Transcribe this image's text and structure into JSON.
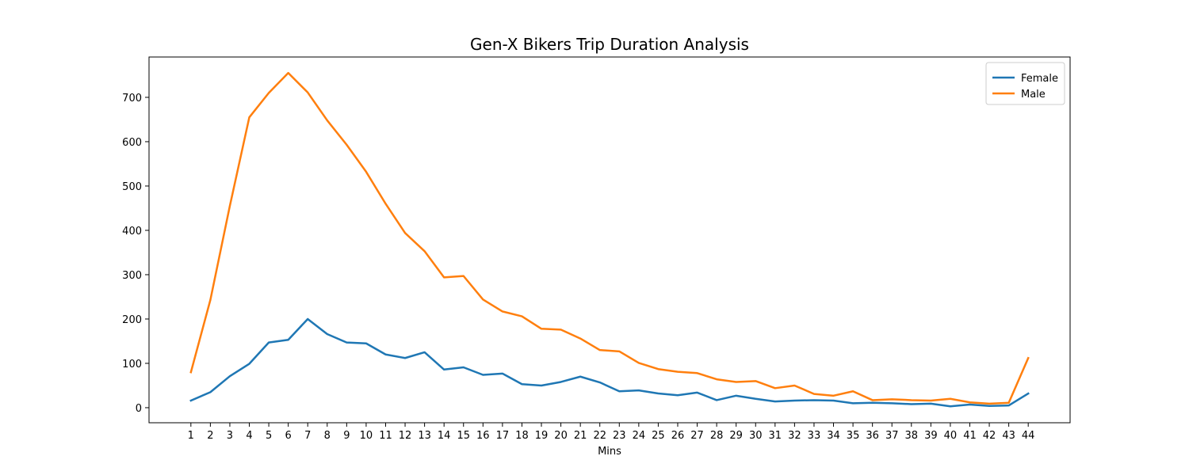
{
  "chart_data": {
    "type": "line",
    "title": "Gen-X Bikers Trip Duration Analysis",
    "xlabel": "Mins",
    "ylabel": "",
    "x": [
      1,
      2,
      3,
      4,
      5,
      6,
      7,
      8,
      9,
      10,
      11,
      12,
      13,
      14,
      15,
      16,
      17,
      18,
      19,
      20,
      21,
      22,
      23,
      24,
      25,
      26,
      27,
      28,
      29,
      30,
      31,
      32,
      33,
      34,
      35,
      36,
      37,
      38,
      39,
      40,
      41,
      42,
      43,
      44
    ],
    "xlim": [
      -1.15,
      46.15
    ],
    "ylim": [
      -34,
      791
    ],
    "yticks": [
      0,
      100,
      200,
      300,
      400,
      500,
      600,
      700
    ],
    "grid": false,
    "legend_position": "top-right",
    "series": [
      {
        "name": "Female",
        "color": "#1f77b4",
        "values": [
          16,
          35,
          71,
          99,
          147,
          153,
          200,
          166,
          147,
          145,
          120,
          112,
          125,
          86,
          91,
          74,
          77,
          53,
          50,
          58,
          70,
          57,
          37,
          39,
          32,
          28,
          34,
          17,
          27,
          20,
          14,
          16,
          17,
          16,
          10,
          11,
          10,
          8,
          9,
          3,
          7,
          4,
          5,
          32
        ]
      },
      {
        "name": "Male",
        "color": "#ff7f0e",
        "values": [
          80,
          243,
          455,
          655,
          710,
          755,
          711,
          648,
          593,
          532,
          460,
          394,
          353,
          294,
          297,
          244,
          217,
          206,
          178,
          176,
          156,
          130,
          127,
          101,
          87,
          81,
          78,
          64,
          58,
          60,
          44,
          50,
          31,
          27,
          37,
          17,
          19,
          17,
          16,
          20,
          12,
          9,
          11,
          112
        ]
      }
    ]
  }
}
